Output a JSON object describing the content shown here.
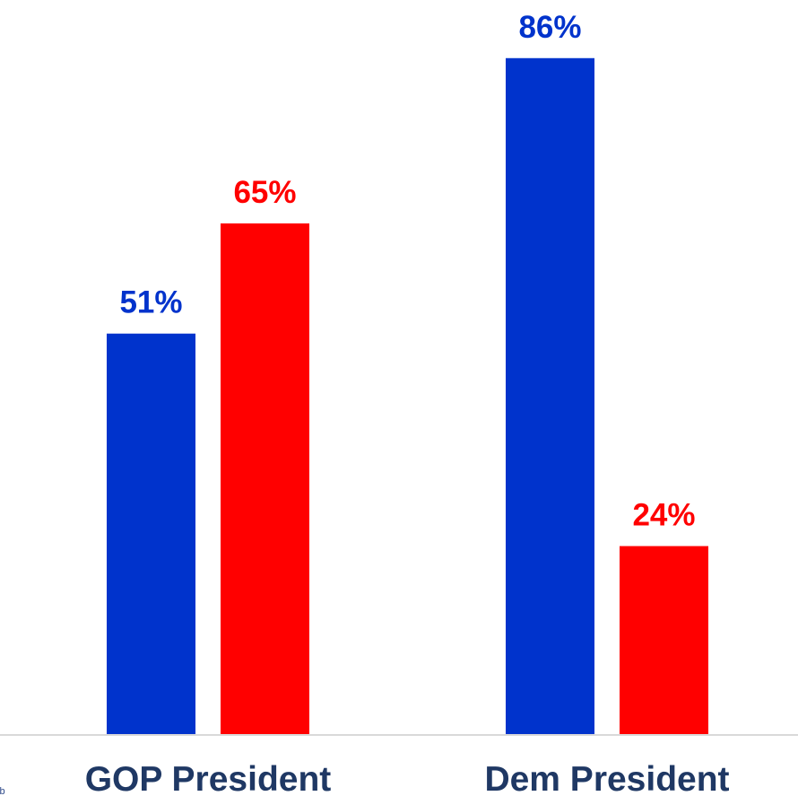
{
  "chart_data": {
    "type": "bar",
    "categories": [
      "GOP President",
      "Dem President"
    ],
    "series": [
      {
        "values": [
          51,
          86
        ],
        "color": "#0033cc"
      },
      {
        "values": [
          65,
          24
        ],
        "color": "#ff0000"
      }
    ],
    "value_format": "{v}%",
    "title": "",
    "xlabel": "",
    "ylabel": "",
    "ylim": [
      0,
      100
    ],
    "grid": false,
    "legend": "none",
    "baseline_color": "#d9d9d9"
  },
  "corner_mark": "lb"
}
